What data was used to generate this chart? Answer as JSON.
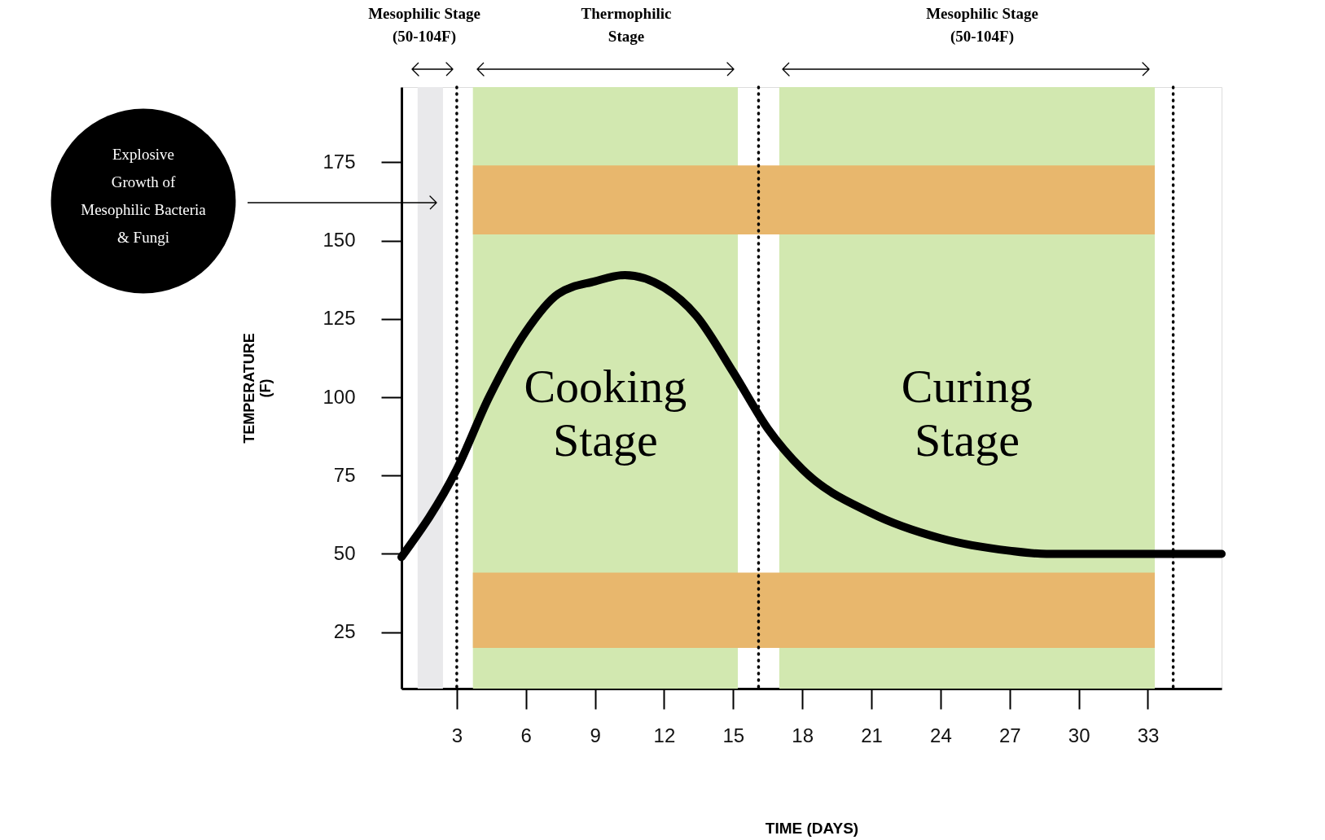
{
  "chart_data": {
    "type": "line",
    "xlabel": "TIME (DAYS)",
    "ylabel": "TEMPERATURE (F)",
    "xlim": [
      0.6,
      36.2
    ],
    "ylim": [
      7,
      199
    ],
    "xticks": [
      3,
      6,
      9,
      12,
      15,
      18,
      21,
      24,
      27,
      30,
      33
    ],
    "yticks": [
      25,
      50,
      75,
      100,
      125,
      150,
      175
    ],
    "grid": false,
    "x": [
      0.6,
      3,
      4.4,
      6,
      7.4,
      9,
      10.3,
      12,
      13.4,
      15,
      16.5,
      18,
      21,
      24,
      27,
      28.6,
      33,
      36.2
    ],
    "series": [
      {
        "color": "#000000",
        "values": [
          49,
          77,
          100,
          121,
          133,
          137,
          139,
          135,
          126,
          108,
          90,
          77,
          63,
          55,
          51,
          50,
          50,
          50
        ]
      }
    ],
    "bands": [
      {
        "axis": "x",
        "from": 1.3,
        "to": 2.4,
        "color": "#e9e9eb"
      },
      {
        "axis": "x",
        "from": 3.7,
        "to": 15.2,
        "color": "#d2e8b0",
        "label": "Cooking\nStage"
      },
      {
        "axis": "x",
        "from": 17.0,
        "to": 33.3,
        "color": "#d2e8b0",
        "label": "Curing\nStage"
      },
      {
        "axis": "y",
        "from": 152,
        "to": 174,
        "color": "#e8b76d"
      },
      {
        "axis": "y",
        "from": 20,
        "to": 44,
        "color": "#e8b76d"
      }
    ],
    "ref_lines": [
      {
        "axis": "x",
        "value": 3.0,
        "line_style": "dotted"
      },
      {
        "axis": "x",
        "value": 16.1,
        "line_style": "dotted"
      },
      {
        "axis": "x",
        "value": 34.1,
        "line_style": "dotted"
      }
    ],
    "annotations": [
      "Mesophilic Stage\n(50-104F)",
      "Thermophilic\nStage",
      "Mesophilic Stage\n(50-104F)",
      "Explosive\nGrowth of\nMesophilic Bacteria\n& Fungi"
    ]
  }
}
